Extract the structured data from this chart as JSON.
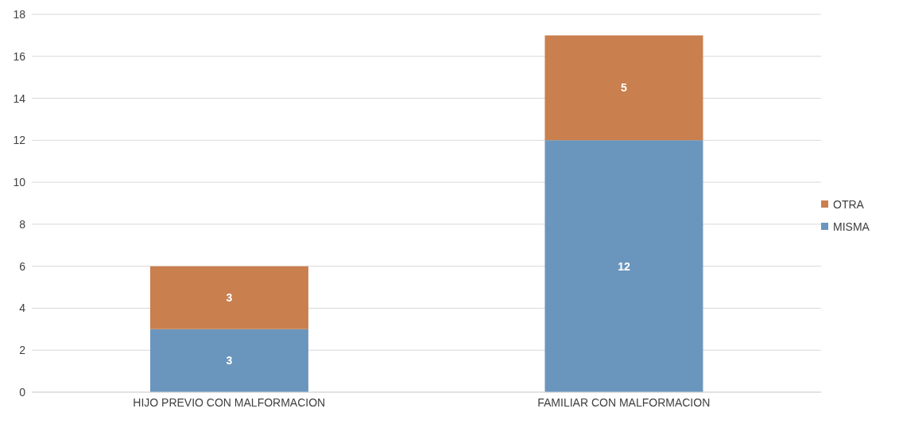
{
  "chart_data": {
    "type": "bar",
    "stacked": true,
    "categories": [
      "HIJO PREVIO CON MALFORMACION",
      "FAMILIAR CON MALFORMACION"
    ],
    "series": [
      {
        "name": "MISMA",
        "color": "#6a96bd",
        "values": [
          3,
          12
        ]
      },
      {
        "name": "OTRA",
        "color": "#c97f4e",
        "values": [
          3,
          5
        ]
      }
    ],
    "ylim": [
      0,
      18
    ],
    "yticks": [
      0,
      2,
      4,
      6,
      8,
      10,
      12,
      14,
      16,
      18
    ],
    "grid": "y",
    "legend": "right",
    "data_labels": true
  }
}
